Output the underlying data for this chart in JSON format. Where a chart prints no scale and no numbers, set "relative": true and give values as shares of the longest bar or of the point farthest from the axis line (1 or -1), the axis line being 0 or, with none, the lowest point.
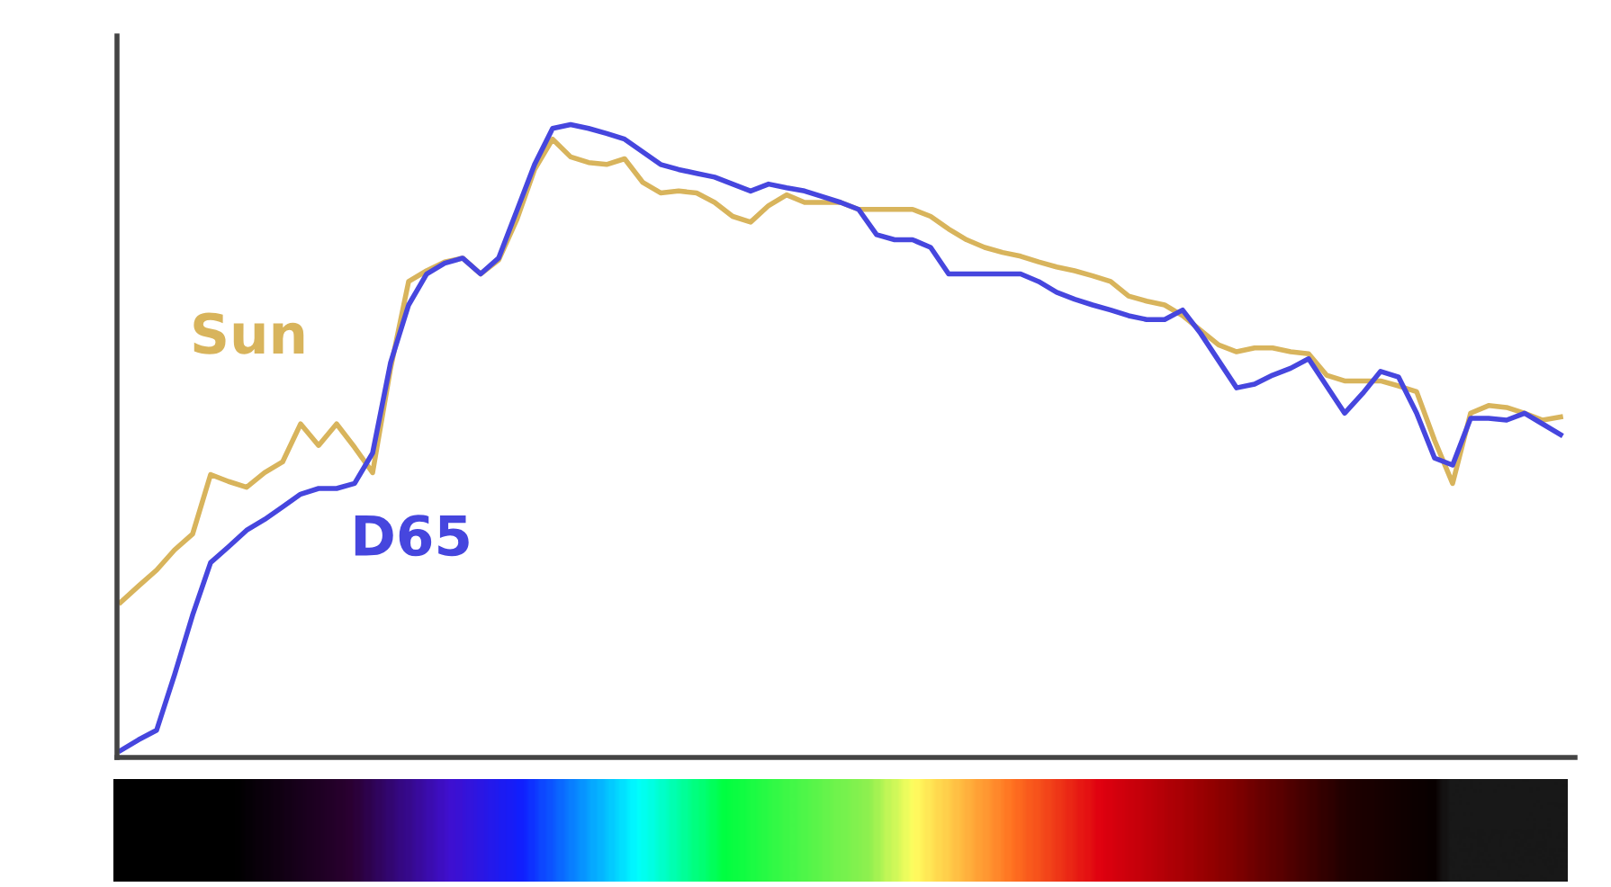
{
  "chart_data": {
    "type": "line",
    "relative": true,
    "legend": false,
    "marker": "none",
    "line_style": "solid",
    "categories": [
      null,
      null,
      null,
      null,
      null,
      null,
      null,
      null,
      null,
      null,
      null,
      null,
      null,
      null,
      null,
      null,
      null,
      null,
      null,
      null,
      null,
      null,
      null,
      null,
      null,
      null,
      null,
      null,
      null,
      null,
      null,
      null,
      null,
      null,
      null,
      null,
      null,
      null,
      null,
      null,
      null,
      null,
      null,
      null,
      null,
      null,
      null,
      null,
      null,
      null,
      null,
      null,
      null,
      null,
      null,
      null,
      null,
      null,
      null,
      null,
      null,
      null,
      null,
      null,
      null,
      null,
      null,
      null,
      null,
      null,
      null,
      null,
      null,
      null,
      null,
      null,
      null,
      null,
      null,
      null,
      null
    ],
    "series": [
      {
        "name": "Sun",
        "color": "#d8b45c",
        "values": [
          0.245,
          0.271,
          0.296,
          0.328,
          0.353,
          0.447,
          0.436,
          0.427,
          0.45,
          0.467,
          0.527,
          0.493,
          0.527,
          0.49,
          0.45,
          0.615,
          0.752,
          0.769,
          0.783,
          0.789,
          0.764,
          0.786,
          0.849,
          0.929,
          0.977,
          0.949,
          0.94,
          0.937,
          0.946,
          0.909,
          0.892,
          0.895,
          0.892,
          0.877,
          0.855,
          0.846,
          0.872,
          0.889,
          0.877,
          0.877,
          0.877,
          0.866,
          0.866,
          0.866,
          0.866,
          0.855,
          0.835,
          0.818,
          0.806,
          0.798,
          0.792,
          0.783,
          0.775,
          0.769,
          0.761,
          0.752,
          0.729,
          0.721,
          0.715,
          0.698,
          0.675,
          0.652,
          0.641,
          0.647,
          0.647,
          0.641,
          0.638,
          0.604,
          0.595,
          0.595,
          0.595,
          0.587,
          0.578,
          0.501,
          0.433,
          0.544,
          0.556,
          0.553,
          0.544,
          0.533,
          0.538
        ]
      },
      {
        "name": "D65",
        "color": "#4646de",
        "values": [
          0.011,
          0.028,
          0.043,
          0.131,
          0.225,
          0.308,
          0.333,
          0.359,
          0.376,
          0.396,
          0.416,
          0.425,
          0.425,
          0.433,
          0.481,
          0.624,
          0.715,
          0.764,
          0.781,
          0.789,
          0.764,
          0.789,
          0.863,
          0.937,
          0.994,
          1.0,
          0.994,
          0.986,
          0.977,
          0.957,
          0.937,
          0.929,
          0.923,
          0.917,
          0.906,
          0.895,
          0.906,
          0.9,
          0.895,
          0.886,
          0.877,
          0.866,
          0.826,
          0.818,
          0.818,
          0.806,
          0.764,
          0.764,
          0.764,
          0.764,
          0.764,
          0.752,
          0.735,
          0.724,
          0.715,
          0.707,
          0.698,
          0.692,
          0.692,
          0.707,
          0.67,
          0.627,
          0.584,
          0.59,
          0.604,
          0.615,
          0.63,
          0.587,
          0.544,
          0.575,
          0.61,
          0.601,
          0.544,
          0.473,
          0.462,
          0.536,
          0.536,
          0.533,
          0.544,
          0.527,
          0.51
        ]
      }
    ]
  }
}
